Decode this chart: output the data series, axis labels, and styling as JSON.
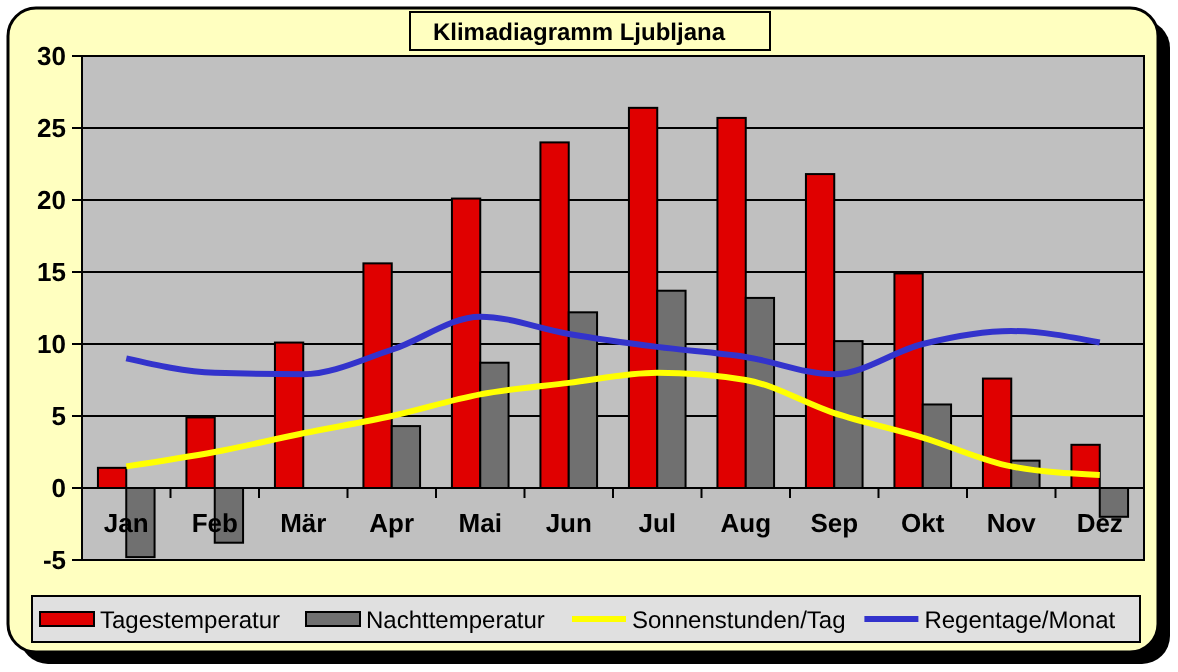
{
  "chart_data": {
    "type": "bar",
    "title": "Klimadiagramm Ljubljana",
    "categories": [
      "Jan",
      "Feb",
      "Mär",
      "Apr",
      "Mai",
      "Jun",
      "Jul",
      "Aug",
      "Sep",
      "Okt",
      "Nov",
      "Dez"
    ],
    "series": [
      {
        "name": "Tagestemperatur",
        "color": "#e00000",
        "values": [
          1.4,
          4.9,
          10.1,
          15.6,
          20.1,
          24.0,
          26.4,
          25.7,
          21.8,
          14.9,
          7.6,
          3.0
        ]
      },
      {
        "name": "Nachttemperatur",
        "color": "#707070",
        "values": [
          -4.8,
          -3.8,
          0.0,
          4.3,
          8.7,
          12.2,
          13.7,
          13.2,
          10.2,
          5.8,
          1.9,
          -2.0
        ]
      },
      {
        "name": "Sonnenstunden/Tag",
        "type": "line",
        "color": "#ffff00",
        "values": [
          1.5,
          2.5,
          3.8,
          5.0,
          6.5,
          7.3,
          8.0,
          7.5,
          5.2,
          3.5,
          1.5,
          0.9
        ]
      },
      {
        "name": "Regentage/Monat",
        "type": "line",
        "color": "#3333cc",
        "values": [
          9.0,
          8.0,
          7.9,
          9.6,
          11.9,
          10.7,
          9.8,
          9.1,
          7.9,
          10.0,
          10.9,
          10.1
        ]
      }
    ],
    "ylim": [
      -5,
      30
    ],
    "yticks": [
      -5,
      0,
      5,
      10,
      15,
      20,
      25,
      30
    ],
    "grid": "y",
    "legend": "bottom",
    "marker": "none",
    "line_style": "solid"
  }
}
